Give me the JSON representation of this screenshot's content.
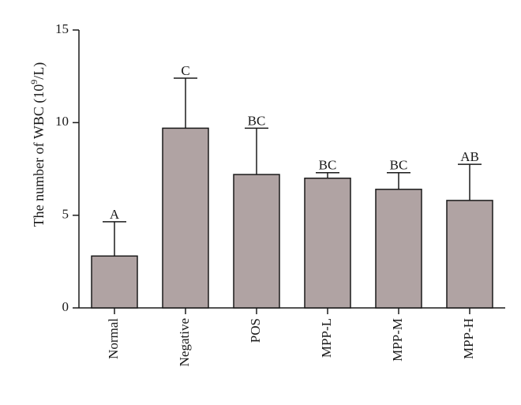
{
  "chart_data": {
    "type": "bar",
    "ylabel_main": "The number of WBC (10",
    "ylabel_sup": "9",
    "ylabel_tail": "/L)",
    "ylim": [
      0,
      15
    ],
    "yticks": [
      0,
      5,
      10,
      15
    ],
    "ytick_labels": [
      "0",
      "5",
      "10",
      "15"
    ],
    "categories": [
      "Normal",
      "Negative",
      "POS",
      "MPP-L",
      "MPP-M",
      "MPP-H"
    ],
    "values": [
      2.8,
      9.7,
      7.2,
      7.0,
      6.4,
      5.8
    ],
    "errors": [
      1.85,
      2.7,
      2.5,
      0.3,
      0.9,
      1.95
    ],
    "significance": [
      "A",
      "C",
      "BC",
      "BC",
      "BC",
      "AB"
    ],
    "bar_color": "#b0a3a3",
    "grid": false,
    "legend": "none"
  }
}
